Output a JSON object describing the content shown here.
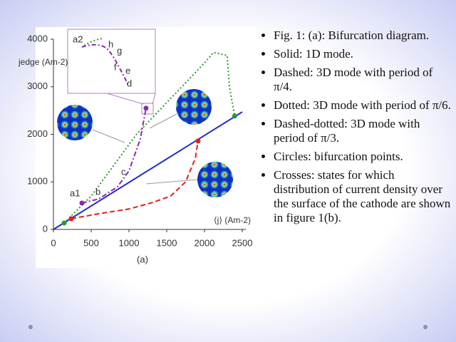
{
  "chart_data": {
    "type": "line",
    "xlabel": "⟨j⟩ (Am-2)",
    "ylabel": "jedge (Am-2)",
    "caption": "(a)",
    "xlim": [
      0,
      2500
    ],
    "ylim": [
      0,
      4000
    ],
    "xticks": [
      0,
      500,
      1000,
      1500,
      2000,
      2500
    ],
    "yticks": [
      0,
      1000,
      2000,
      3000,
      4000
    ],
    "series": [
      {
        "color": "#1f2ccf",
        "style": "solid",
        "x": [
          0,
          2500
        ],
        "values": [
          0,
          2470
        ]
      },
      {
        "color": "#e0201c",
        "style": "dashed",
        "x": [
          236,
          600,
          1000,
          1300,
          1550,
          1750,
          1880,
          1915
        ],
        "values": [
          225,
          330,
          430,
          560,
          700,
          1000,
          1500,
          1875
        ]
      },
      {
        "color": "#2a9a2a",
        "style": "dotted",
        "x": [
          140,
          500,
          800,
          1100,
          1400,
          1700,
          2000,
          2120,
          2300,
          2330,
          2400
        ],
        "values": [
          135,
          700,
          1350,
          2000,
          2500,
          3000,
          3500,
          3720,
          3660,
          3000,
          2380
        ]
      },
      {
        "color": "#8a2aa8",
        "style": "dashdot",
        "x": [
          377,
          600,
          850,
          1000,
          1150,
          1226
        ],
        "values": [
          555,
          640,
          900,
          1230,
          1900,
          2550
        ]
      }
    ],
    "markers": {
      "x": [
        142,
        2400,
        236,
        1915,
        377,
        1226
      ],
      "values": [
        135,
        2385,
        225,
        1860,
        555,
        2550
      ],
      "colors": [
        "#2a9a2a",
        "#2a9a2a",
        "#e0201c",
        "#e0201c",
        "#8a2aa8",
        "#8a2aa8"
      ]
    },
    "annotations": [
      "a1",
      "b",
      "c",
      "a2",
      "h",
      "g",
      "f",
      "e",
      "d"
    ]
  },
  "slide": {
    "bullets": [
      "Fig. 1: (a): Bifurcation diagram.",
      "Solid: 1D mode.",
      "Dashed: 3D mode with period of  π/4.",
      "Dotted: 3D mode with period of  π/6.",
      "Dashed-dotted: 3D mode with period of  π/3.",
      "Circles: bifurcation points.",
      "Crosses: states for which distribution of current density over the surface of the cathode are shown in figure 1(b)."
    ]
  }
}
